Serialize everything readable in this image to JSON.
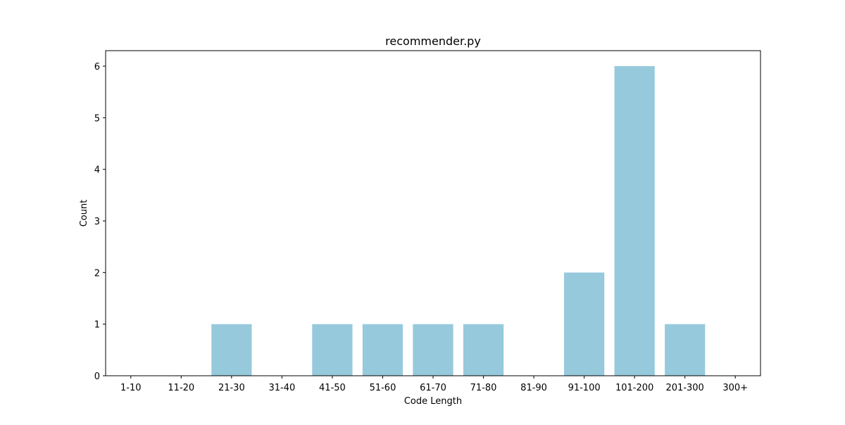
{
  "chart_data": {
    "type": "bar",
    "title": "recommender.py",
    "xlabel": "Code Length",
    "ylabel": "Count",
    "categories": [
      "1-10",
      "11-20",
      "21-30",
      "31-40",
      "41-50",
      "51-60",
      "61-70",
      "71-80",
      "81-90",
      "91-100",
      "101-200",
      "201-300",
      "300+"
    ],
    "values": [
      0,
      0,
      1,
      0,
      1,
      1,
      1,
      1,
      0,
      2,
      6,
      1,
      0
    ],
    "ylim": [
      0,
      6.3
    ],
    "yticks": [
      0,
      1,
      2,
      3,
      4,
      5,
      6
    ],
    "bar_color": "#96c9dc",
    "grid": false,
    "legend": "none"
  }
}
